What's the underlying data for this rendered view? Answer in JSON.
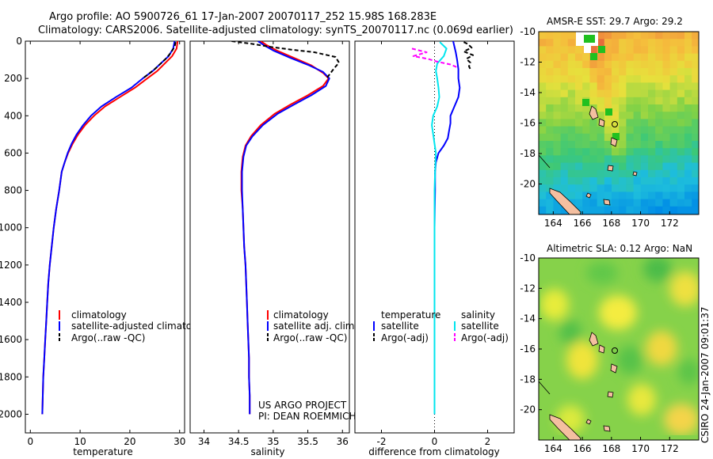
{
  "header": {
    "line1": "Argo profile: AO 5900726_61 17-Jan-2007 20070117_252 15.98S 168.283E",
    "line2": "Climatology: CARS2006. Satellite-adjusted climatology: synTS_20070117.nc (0.069d earlier)"
  },
  "chart_data": [
    {
      "type": "line",
      "xlabel": "temperature",
      "ylabel": "",
      "xlim": [
        -1,
        31
      ],
      "ylim": [
        2100,
        0
      ],
      "xticks": [
        0,
        10,
        20,
        30
      ],
      "yticks": [
        0,
        200,
        400,
        600,
        800,
        1000,
        1200,
        1400,
        1600,
        1800,
        2000
      ],
      "legend": {
        "location": "lower-right",
        "entries": [
          "climatology",
          "satellite-adjusted climatology",
          "Argo(..raw -QC)"
        ]
      },
      "series": [
        {
          "name": "climatology",
          "color": "#ff0000",
          "dashed": false,
          "points": [
            [
              29.6,
              0
            ],
            [
              29.4,
              40
            ],
            [
              28.5,
              80
            ],
            [
              27,
              120
            ],
            [
              25.5,
              160
            ],
            [
              23.5,
              200
            ],
            [
              21,
              250
            ],
            [
              18,
              300
            ],
            [
              15,
              350
            ],
            [
              12.8,
              400
            ],
            [
              11,
              450
            ],
            [
              9.6,
              500
            ],
            [
              8.5,
              550
            ],
            [
              7.6,
              600
            ],
            [
              6.9,
              650
            ],
            [
              6.3,
              700
            ],
            [
              5.8,
              800
            ],
            [
              5.2,
              900
            ],
            [
              4.7,
              1000
            ],
            [
              4.3,
              1100
            ],
            [
              3.9,
              1200
            ],
            [
              3.6,
              1300
            ],
            [
              3.4,
              1400
            ],
            [
              3.2,
              1500
            ],
            [
              3.0,
              1600
            ],
            [
              2.8,
              1700
            ],
            [
              2.6,
              1800
            ],
            [
              2.5,
              1900
            ],
            [
              2.4,
              2000
            ]
          ]
        },
        {
          "name": "satellite-adjusted climatology",
          "color": "#0000ff",
          "dashed": false,
          "points": [
            [
              29.0,
              0
            ],
            [
              28.7,
              40
            ],
            [
              27.8,
              80
            ],
            [
              26.2,
              120
            ],
            [
              24.6,
              160
            ],
            [
              22.6,
              200
            ],
            [
              20.3,
              250
            ],
            [
              17.2,
              300
            ],
            [
              14.3,
              350
            ],
            [
              12.2,
              400
            ],
            [
              10.6,
              450
            ],
            [
              9.3,
              500
            ],
            [
              8.3,
              550
            ],
            [
              7.5,
              600
            ],
            [
              6.9,
              650
            ],
            [
              6.3,
              700
            ],
            [
              5.8,
              800
            ],
            [
              5.2,
              900
            ],
            [
              4.7,
              1000
            ],
            [
              4.3,
              1100
            ],
            [
              3.9,
              1200
            ],
            [
              3.6,
              1300
            ],
            [
              3.4,
              1400
            ],
            [
              3.2,
              1500
            ],
            [
              3.0,
              1600
            ],
            [
              2.8,
              1700
            ],
            [
              2.6,
              1800
            ],
            [
              2.5,
              1900
            ],
            [
              2.4,
              2000
            ]
          ]
        },
        {
          "name": "Argo(..raw -QC)",
          "color": "#000000",
          "dashed": true,
          "points": [
            [
              29.2,
              5
            ],
            [
              29.0,
              30
            ],
            [
              28.3,
              60
            ],
            [
              27.4,
              90
            ],
            [
              26.2,
              120
            ],
            [
              25.0,
              150
            ],
            [
              23.8,
              175
            ],
            [
              22.6,
              200
            ]
          ]
        }
      ]
    },
    {
      "type": "line",
      "xlabel": "salinity",
      "ylabel": "",
      "xlim": [
        33.8,
        36.1
      ],
      "ylim": [
        2100,
        0
      ],
      "xticks": [
        34,
        34.5,
        35,
        35.5,
        36
      ],
      "legend": {
        "location": "lower-right",
        "entries": [
          "climatology",
          "satellite adj. clim.",
          "Argo(..raw -QC)"
        ]
      },
      "annotations": [
        "US ARGO PROJECT",
        "PI: DEAN ROEMMICH"
      ],
      "series": [
        {
          "name": "climatology",
          "color": "#ff0000",
          "dashed": false,
          "points": [
            [
              34.82,
              0
            ],
            [
              34.9,
              20
            ],
            [
              35.05,
              50
            ],
            [
              35.3,
              90
            ],
            [
              35.55,
              130
            ],
            [
              35.72,
              170
            ],
            [
              35.8,
              200
            ],
            [
              35.72,
              240
            ],
            [
              35.5,
              290
            ],
            [
              35.25,
              340
            ],
            [
              35.02,
              390
            ],
            [
              34.82,
              450
            ],
            [
              34.68,
              510
            ],
            [
              34.6,
              560
            ],
            [
              34.56,
              620
            ],
            [
              34.54,
              700
            ],
            [
              34.54,
              800
            ],
            [
              34.56,
              900
            ],
            [
              34.57,
              1000
            ],
            [
              34.58,
              1100
            ],
            [
              34.6,
              1200
            ],
            [
              34.61,
              1300
            ],
            [
              34.62,
              1400
            ],
            [
              34.63,
              1500
            ],
            [
              34.64,
              1600
            ],
            [
              34.65,
              1700
            ],
            [
              34.65,
              1800
            ],
            [
              34.66,
              1900
            ],
            [
              34.66,
              2000
            ]
          ]
        },
        {
          "name": "satellite adj. clim.",
          "color": "#0000ff",
          "dashed": false,
          "points": [
            [
              34.78,
              0
            ],
            [
              34.86,
              20
            ],
            [
              35.0,
              50
            ],
            [
              35.25,
              90
            ],
            [
              35.52,
              130
            ],
            [
              35.72,
              165
            ],
            [
              35.81,
              200
            ],
            [
              35.76,
              240
            ],
            [
              35.55,
              290
            ],
            [
              35.3,
              340
            ],
            [
              35.06,
              390
            ],
            [
              34.85,
              450
            ],
            [
              34.7,
              510
            ],
            [
              34.61,
              560
            ],
            [
              34.57,
              620
            ],
            [
              34.55,
              700
            ],
            [
              34.55,
              800
            ],
            [
              34.56,
              900
            ],
            [
              34.57,
              1000
            ],
            [
              34.58,
              1100
            ],
            [
              34.6,
              1200
            ],
            [
              34.61,
              1300
            ],
            [
              34.62,
              1400
            ],
            [
              34.63,
              1500
            ],
            [
              34.64,
              1600
            ],
            [
              34.65,
              1700
            ],
            [
              34.65,
              1800
            ],
            [
              34.66,
              1900
            ],
            [
              34.66,
              2000
            ]
          ]
        },
        {
          "name": "Argo(..raw -QC)",
          "color": "#000000",
          "dashed": true,
          "points": [
            [
              34.4,
              0
            ],
            [
              34.7,
              15
            ],
            [
              34.95,
              30
            ],
            [
              35.25,
              45
            ],
            [
              35.6,
              60
            ],
            [
              35.9,
              85
            ],
            [
              35.95,
              115
            ],
            [
              35.87,
              150
            ],
            [
              35.82,
              175
            ],
            [
              35.77,
              200
            ]
          ]
        }
      ]
    },
    {
      "type": "line",
      "xlabel": "difference from climatology",
      "ylabel": "",
      "xlim": [
        -3,
        3
      ],
      "ylim": [
        2100,
        0
      ],
      "xticks": [
        -2,
        0,
        2
      ],
      "legend": {
        "location": "lower-right",
        "groups": [
          "temperature",
          "salinity"
        ],
        "entries": [
          "satellite",
          "Argo(-adj)",
          "satellite",
          "Argo(-adj)"
        ]
      },
      "series": [
        {
          "name": "satellite",
          "group": "temperature",
          "color": "#0000ff",
          "dashed": false,
          "points": [
            [
              0.7,
              0
            ],
            [
              0.8,
              60
            ],
            [
              0.85,
              100
            ],
            [
              0.9,
              150
            ],
            [
              0.9,
              200
            ],
            [
              0.95,
              250
            ],
            [
              0.9,
              300
            ],
            [
              0.75,
              350
            ],
            [
              0.6,
              400
            ],
            [
              0.6,
              440
            ],
            [
              0.55,
              480
            ],
            [
              0.5,
              520
            ],
            [
              0.35,
              560
            ],
            [
              0.15,
              600
            ],
            [
              0.05,
              650
            ],
            [
              0.02,
              700
            ],
            [
              0.02,
              800
            ],
            [
              0.01,
              900
            ],
            [
              0.0,
              1000
            ],
            [
              0.0,
              1200
            ],
            [
              0.0,
              1400
            ],
            [
              0.0,
              1600
            ],
            [
              0.0,
              1800
            ],
            [
              0.0,
              2000
            ]
          ]
        },
        {
          "name": "Argo(-adj)",
          "group": "temperature",
          "color": "#000000",
          "dashed": true,
          "points": [
            [
              1.1,
              5
            ],
            [
              1.25,
              15
            ],
            [
              1.4,
              35
            ],
            [
              1.1,
              55
            ],
            [
              1.45,
              75
            ],
            [
              1.2,
              95
            ],
            [
              1.35,
              115
            ],
            [
              1.3,
              135
            ],
            [
              1.35,
              150
            ]
          ]
        },
        {
          "name": "satellite",
          "group": "salinity",
          "color": "#00e5ee",
          "dashed": false,
          "points": [
            [
              0.2,
              5
            ],
            [
              0.45,
              40
            ],
            [
              0.35,
              80
            ],
            [
              0.1,
              120
            ],
            [
              0.05,
              160
            ],
            [
              0.1,
              200
            ],
            [
              0.15,
              250
            ],
            [
              0.18,
              300
            ],
            [
              0.1,
              350
            ],
            [
              -0.05,
              400
            ],
            [
              -0.1,
              450
            ],
            [
              -0.05,
              500
            ],
            [
              0.0,
              550
            ],
            [
              0.05,
              600
            ],
            [
              0.02,
              700
            ],
            [
              0.0,
              800
            ],
            [
              0.0,
              1000
            ],
            [
              0.0,
              1200
            ],
            [
              0.0,
              1400
            ],
            [
              0.0,
              1600
            ],
            [
              0.0,
              1800
            ],
            [
              0.0,
              2000
            ]
          ]
        },
        {
          "name": "Argo(-adj)",
          "group": "salinity",
          "color": "#ff00ff",
          "dashed": true,
          "points": [
            [
              -0.85,
              40
            ],
            [
              -0.3,
              60
            ],
            [
              -0.8,
              80
            ],
            [
              -0.25,
              95
            ],
            [
              0.1,
              110
            ],
            [
              0.6,
              125
            ],
            [
              0.85,
              140
            ]
          ]
        }
      ]
    },
    {
      "type": "heatmap",
      "title": "AMSR-E SST: 29.7 Argo: 29.2",
      "xlim": [
        163,
        174
      ],
      "ylim": [
        -22,
        -10
      ],
      "xticks": [
        164,
        166,
        168,
        170,
        172
      ],
      "yticks": [
        -10,
        -12,
        -14,
        -16,
        -18,
        -20
      ]
    },
    {
      "type": "heatmap",
      "title": "Altimetric SLA: 0.12 Argo: NaN",
      "xlim": [
        163,
        174
      ],
      "ylim": [
        -22,
        -10
      ],
      "xticks": [
        164,
        166,
        168,
        170,
        172
      ],
      "yticks": [
        -10,
        -12,
        -14,
        -16,
        -18,
        -20
      ]
    }
  ],
  "footer": {
    "credit": "CSIRO 24-Jan-2007 09:01:37"
  }
}
